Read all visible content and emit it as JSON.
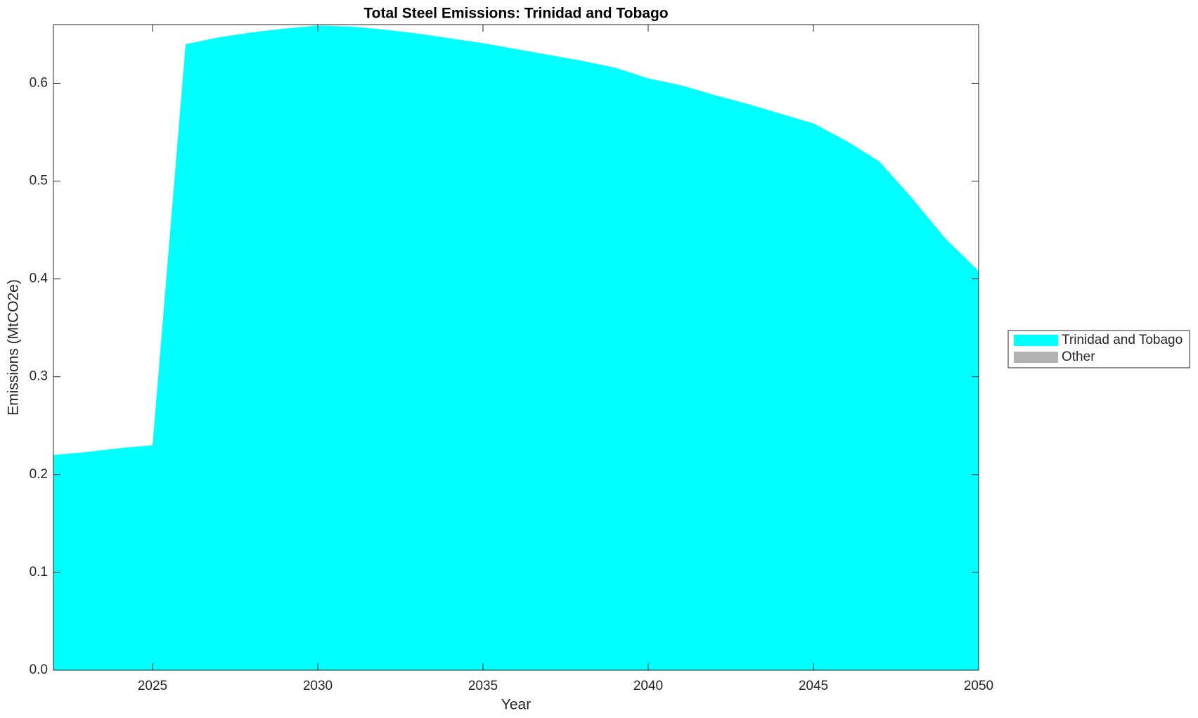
{
  "chart_data": {
    "type": "area",
    "title": "Total Steel Emissions: Trinidad and Tobago",
    "x_label": "Year",
    "y_label": "Emissions (MtCO2e)",
    "x": [
      2022,
      2023,
      2024,
      2025,
      2026,
      2027,
      2028,
      2029,
      2030,
      2031,
      2032,
      2033,
      2034,
      2035,
      2036,
      2037,
      2038,
      2039,
      2040,
      2041,
      2042,
      2043,
      2044,
      2045,
      2046,
      2047,
      2048,
      2049,
      2050
    ],
    "series": [
      {
        "name": "Trinidad and Tobago",
        "color": "#00ffff",
        "values": [
          0.22,
          0.223,
          0.227,
          0.23,
          0.64,
          0.647,
          0.652,
          0.656,
          0.659,
          0.658,
          0.655,
          0.651,
          0.646,
          0.641,
          0.635,
          0.629,
          0.623,
          0.616,
          0.605,
          0.598,
          0.588,
          0.579,
          0.569,
          0.559,
          0.541,
          0.52,
          0.482,
          0.441,
          0.408
        ]
      },
      {
        "name": "Other",
        "color": "#b3b3b3",
        "values": [
          0,
          0,
          0,
          0,
          0,
          0,
          0,
          0,
          0,
          0,
          0,
          0,
          0,
          0,
          0,
          0,
          0,
          0,
          0,
          0,
          0,
          0,
          0,
          0,
          0,
          0,
          0,
          0,
          0
        ]
      }
    ],
    "xlim": [
      2022,
      2050
    ],
    "xticks": [
      2025,
      2030,
      2035,
      2040,
      2045,
      2050
    ],
    "ylim": [
      0,
      0.66
    ],
    "yticks": [
      {
        "value": 0,
        "label": "0.0"
      },
      0.1,
      0.2,
      0.3,
      0.4,
      0.5,
      0.6
    ],
    "stacked": true,
    "legend": "outside-right"
  }
}
